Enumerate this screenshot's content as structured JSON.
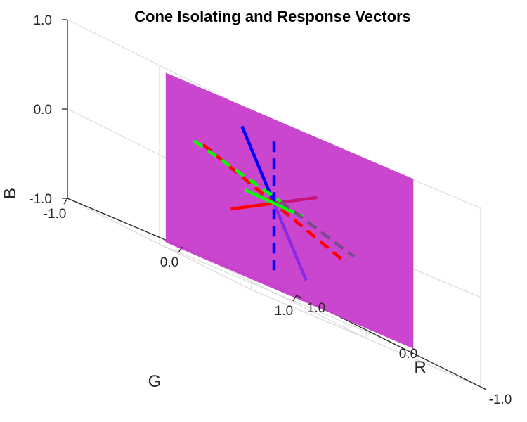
{
  "chart_data": {
    "type": "line3d",
    "title": "Cone Isolating and Response Vectors",
    "axes": {
      "x": {
        "label": "R",
        "range": [
          -1.0,
          1.0
        ],
        "ticks": [
          -1.0,
          0.0,
          1.0
        ],
        "tick_labels": [
          "-1.0",
          "0.0",
          "1.0"
        ],
        "reversed": true
      },
      "y": {
        "label": "G",
        "range": [
          -1.0,
          1.0
        ],
        "ticks": [
          -1.0,
          0.0,
          1.0
        ],
        "tick_labels": [
          "-1.0",
          "0.0",
          "1.0"
        ]
      },
      "z": {
        "label": "B",
        "range": [
          -1.0,
          1.0
        ],
        "ticks": [
          -1.0,
          0.0,
          1.0
        ],
        "tick_labels": [
          "-1.0",
          "0.0",
          "1.0"
        ]
      }
    },
    "grid": true,
    "view": "3d-box",
    "plane": {
      "color": "#c83ccc",
      "opacity": 0.95,
      "corners": [
        [
          -0.03,
          -0.97,
          0.95
        ],
        [
          -0.22,
          1.04,
          0.95
        ],
        [
          -0.22,
          1.04,
          -0.95
        ],
        [
          -0.03,
          -0.97,
          -0.95
        ]
      ]
    },
    "series": [
      {
        "color": "#0000ff",
        "style": "solid",
        "points": [
          [
            0,
            0,
            0
          ],
          [
            0,
            -0.28,
            0.71
          ]
        ]
      },
      {
        "color": "#8a2be2",
        "style": "solid",
        "points": [
          [
            0,
            0,
            0
          ],
          [
            0,
            0.28,
            -0.71
          ]
        ]
      },
      {
        "color": "#0000ff",
        "style": "dashed",
        "points": [
          [
            0,
            0,
            -0.75
          ],
          [
            0,
            0,
            0.75
          ]
        ]
      },
      {
        "color": "#ff0000",
        "style": "solid",
        "points": [
          [
            0,
            0,
            0
          ],
          [
            0.68,
            0.17,
            -0.32
          ]
        ]
      },
      {
        "color": "#c8117a",
        "style": "solid",
        "points": [
          [
            0,
            0,
            0
          ],
          [
            -0.68,
            -0.17,
            0.32
          ]
        ]
      },
      {
        "color": "#ff0000",
        "style": "dashed",
        "points": [
          [
            0,
            -0.62,
            0.32
          ],
          [
            0,
            0.62,
            -0.32
          ]
        ]
      },
      {
        "color": "#00ff00",
        "style": "solid",
        "points": [
          [
            0.43,
            0.09,
            -0.02
          ],
          [
            -0.43,
            -0.09,
            0.02
          ]
        ]
      },
      {
        "color": "#00ff00",
        "style": "dashed",
        "points": [
          [
            0,
            -0.7,
            0.32
          ],
          [
            0,
            0.06,
            0.05
          ]
        ]
      },
      {
        "color": "#7b4a8c",
        "style": "dashed",
        "points": [
          [
            0,
            0.06,
            0.05
          ],
          [
            0,
            0.7,
            -0.22
          ]
        ]
      }
    ]
  }
}
